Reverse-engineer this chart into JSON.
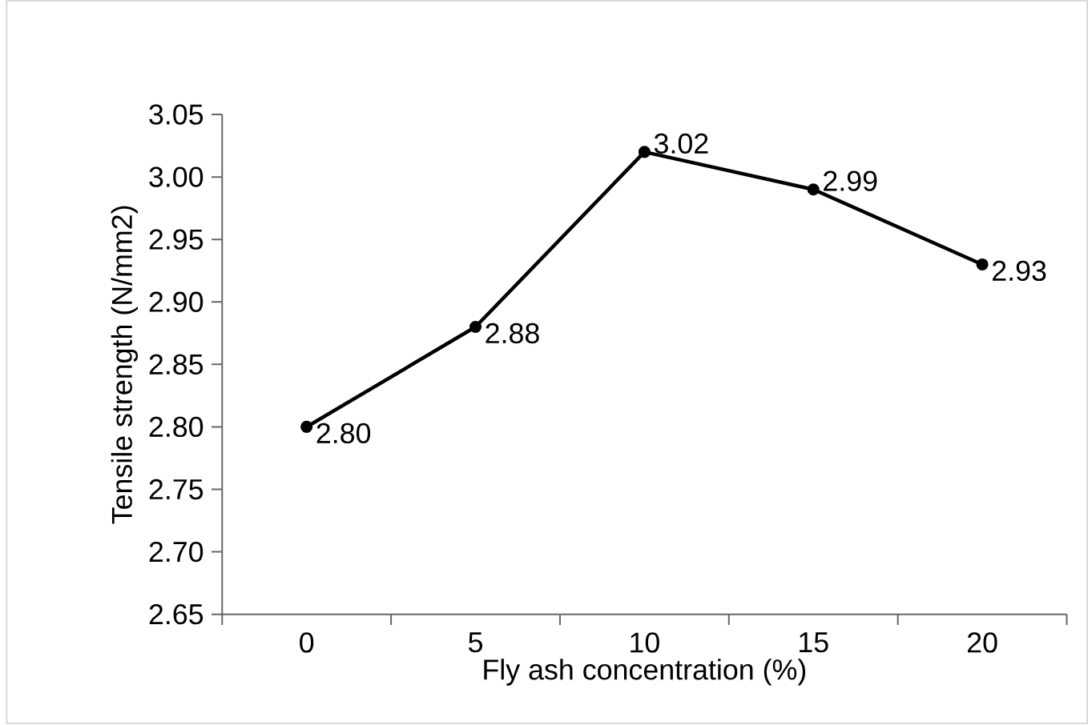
{
  "chart_data": {
    "type": "line",
    "xlabel": "Fly ash concentration (%)",
    "ylabel": "Tensile strength (N/mm2)",
    "categories": [
      "0",
      "5",
      "10",
      "15",
      "20"
    ],
    "values": [
      2.8,
      2.88,
      3.02,
      2.99,
      2.93
    ],
    "value_labels": [
      "2.80",
      "2.88",
      "3.02",
      "2.99",
      "2.93"
    ],
    "color": "#000000",
    "marker": "circle",
    "line_style": "solid",
    "grid": false,
    "ylim": [
      2.65,
      3.05
    ],
    "yticks": [
      {
        "value": 2.65,
        "label": "2.65"
      },
      {
        "value": 2.7,
        "label": "2.70"
      },
      {
        "value": 2.75,
        "label": "2.75"
      },
      {
        "value": 2.8,
        "label": "2.80"
      },
      {
        "value": 2.85,
        "label": "2.85"
      },
      {
        "value": 2.9,
        "label": "2.90"
      },
      {
        "value": 2.95,
        "label": "2.95"
      },
      {
        "value": 3.0,
        "label": "3.00"
      },
      {
        "value": 3.05,
        "label": "3.05"
      }
    ]
  }
}
